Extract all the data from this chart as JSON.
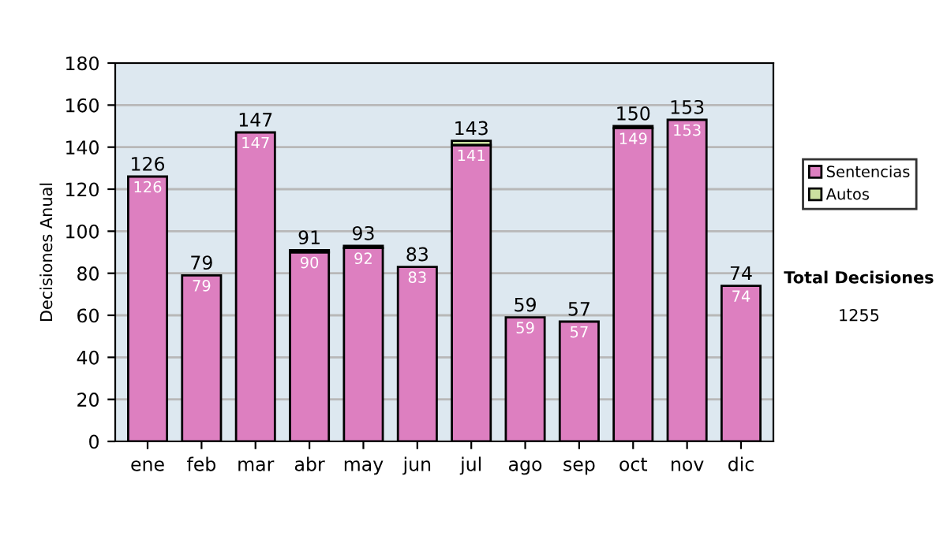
{
  "chart_data": {
    "type": "bar",
    "stacked": true,
    "ylabel": "Decisiones Anual",
    "categories": [
      "ene",
      "feb",
      "mar",
      "abr",
      "may",
      "jun",
      "jul",
      "ago",
      "sep",
      "oct",
      "nov",
      "dic"
    ],
    "series": [
      {
        "name": "Sentencias",
        "color": "#dd7fc0",
        "values": [
          126,
          79,
          147,
          90,
          92,
          83,
          141,
          59,
          57,
          149,
          153,
          74
        ],
        "value_labels": [
          "126",
          "79",
          "147",
          "90",
          "92",
          "83",
          "141",
          "59",
          "57",
          "149",
          "153",
          "74"
        ]
      },
      {
        "name": "Autos",
        "color": "#cce0a0",
        "values": [
          0,
          0,
          0,
          1,
          1,
          0,
          2,
          0,
          0,
          1,
          0,
          0
        ]
      }
    ],
    "totals": [
      "126",
      "79",
      "147",
      "91",
      "93",
      "83",
      "143",
      "59",
      "57",
      "150",
      "153",
      "74"
    ],
    "ylim": [
      0,
      180
    ],
    "yticks": [
      0,
      20,
      40,
      60,
      80,
      100,
      120,
      140,
      160,
      180
    ],
    "grid": "y",
    "legend": "right",
    "annotations": [
      "Total Decisiones",
      "1255"
    ]
  }
}
